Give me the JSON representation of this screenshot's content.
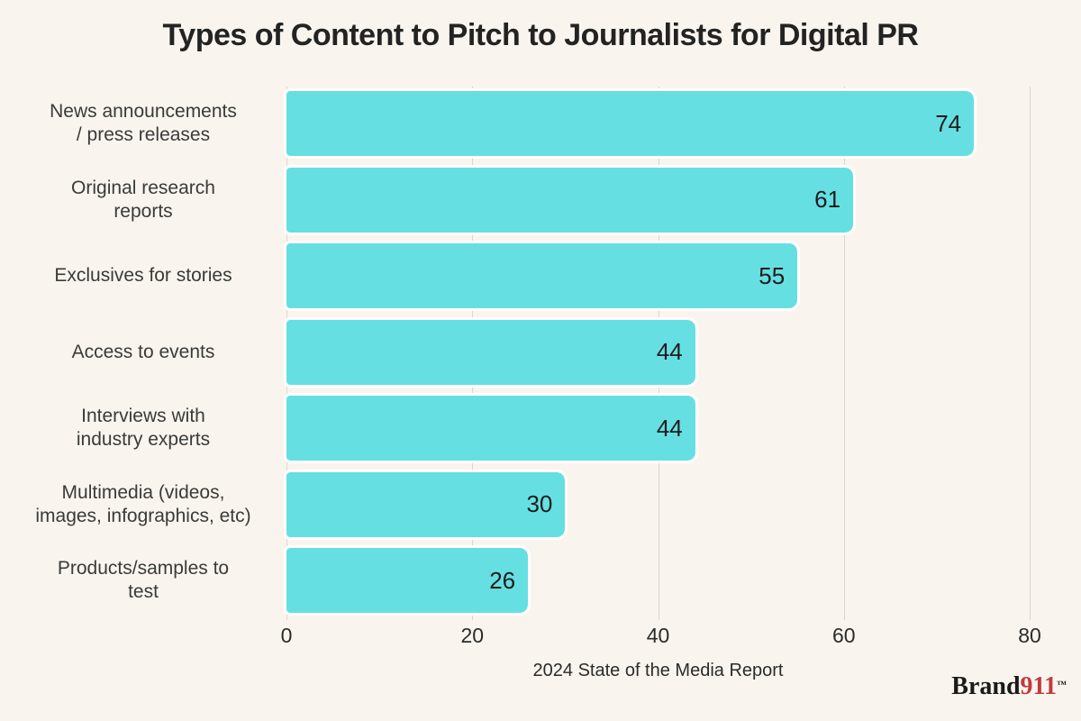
{
  "title": "Types of Content to Pitch to Journalists for Digital PR",
  "chart_data": {
    "type": "bar",
    "orientation": "horizontal",
    "title": "Types of Content to Pitch to Journalists for Digital PR",
    "categories": [
      "News announcements\n/ press releases",
      "Original research\nreports",
      "Exclusives for stories",
      "Access to events",
      "Interviews with\nindustry experts",
      "Multimedia (videos,\nimages, infographics, etc)",
      "Products/samples to\ntest"
    ],
    "values": [
      74,
      61,
      55,
      44,
      44,
      30,
      26
    ],
    "xlabel": "2024 State of the Media Report",
    "ylabel": "",
    "xlim": [
      0,
      80
    ],
    "xticks": [
      0,
      20,
      40,
      60,
      80
    ],
    "grid": true,
    "legend": false,
    "bar_color": "#66dfe2",
    "background_color": "#f9f5ee",
    "gridline_color": "#d9d6d1",
    "value_label_position": "inside-end"
  },
  "footer": {
    "brand_black": "Brand",
    "brand_red": "911",
    "trademark": "™"
  }
}
